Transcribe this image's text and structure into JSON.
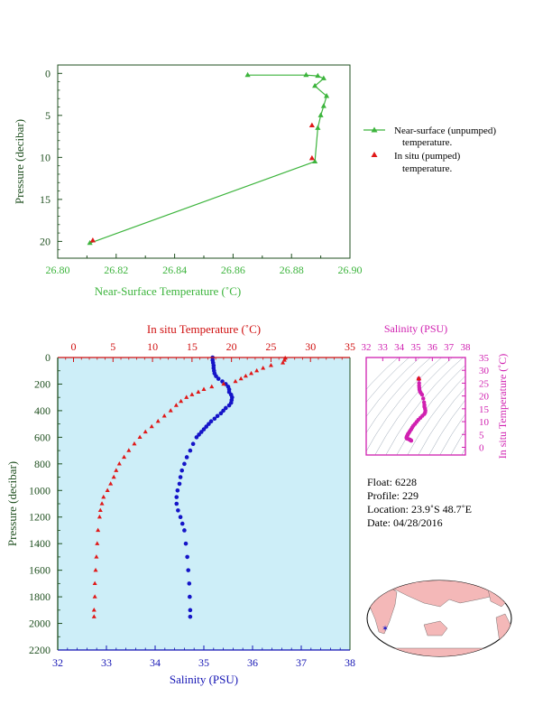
{
  "colors": {
    "green": "#3cb43c",
    "dark_green": "#1f4f1f",
    "red": "#e01818",
    "blue": "#1414c8",
    "magenta": "#d020b0",
    "panel_bg": "#cdeef8",
    "land": "#f4b8b8"
  },
  "chart_data": [
    {
      "type": "line",
      "id": "near_surface",
      "xlabel": "Near-Surface Temperature (˚C)",
      "ylabel": "Pressure (decibar)",
      "xlim": [
        26.8,
        26.9
      ],
      "ylim": [
        22,
        -1
      ],
      "xticks": [
        "26.80",
        "26.82",
        "26.84",
        "26.86",
        "26.88",
        "26.90"
      ],
      "yticks": [
        "0",
        "5",
        "10",
        "15",
        "20"
      ],
      "series": [
        {
          "name": "Near-surface (unpumped) temperature.",
          "marker": "triangle",
          "x": [
            26.865,
            26.885,
            26.889,
            26.891,
            26.888,
            26.892,
            26.891,
            26.89,
            26.889,
            26.888,
            26.811
          ],
          "y": [
            0.2,
            0.2,
            0.3,
            0.6,
            1.5,
            2.7,
            3.9,
            5.0,
            6.5,
            10.5,
            20.2
          ]
        },
        {
          "name": "In situ (pumped) temperature.",
          "marker": "triangle",
          "x": [
            26.887,
            26.887,
            26.812
          ],
          "y": [
            6.2,
            10.1,
            19.9
          ]
        }
      ],
      "legend": {
        "position": "right",
        "entries": [
          {
            "line1": "Near-surface (unpumped)",
            "line2": "temperature."
          },
          {
            "line1": "In situ (pumped)",
            "line2": "temperature."
          }
        ]
      }
    },
    {
      "type": "scatter",
      "id": "profile",
      "ylabel": "Pressure (decibar)",
      "top_xlabel": "In situ Temperature (˚C)",
      "bottom_xlabel": "Salinity (PSU)",
      "temp_lim": [
        -2,
        35
      ],
      "sal_lim": [
        32,
        38
      ],
      "ylim": [
        2200,
        0
      ],
      "temp_ticks": [
        "0",
        "5",
        "10",
        "15",
        "20",
        "25",
        "30",
        "35"
      ],
      "sal_ticks": [
        "32",
        "33",
        "34",
        "35",
        "36",
        "37",
        "38"
      ],
      "pressure_ticks": [
        "0",
        "200",
        "400",
        "600",
        "800",
        "1000",
        "1200",
        "1400",
        "1600",
        "1800",
        "2000",
        "2200"
      ],
      "temperature": {
        "p": [
          5,
          20,
          40,
          60,
          80,
          100,
          120,
          140,
          160,
          180,
          200,
          220,
          240,
          260,
          280,
          300,
          330,
          360,
          400,
          440,
          480,
          520,
          560,
          600,
          650,
          700,
          750,
          800,
          850,
          900,
          950,
          1000,
          1050,
          1100,
          1150,
          1200,
          1300,
          1400,
          1500,
          1600,
          1700,
          1800,
          1900,
          1950
        ],
        "t": [
          26.8,
          26.7,
          26.5,
          25.0,
          24.0,
          23.2,
          22.5,
          21.8,
          21.2,
          20.5,
          19.0,
          17.5,
          16.5,
          15.8,
          15.0,
          14.3,
          13.6,
          13.0,
          12.3,
          11.5,
          10.7,
          9.9,
          9.1,
          8.4,
          7.7,
          7.0,
          6.4,
          5.8,
          5.4,
          5.1,
          4.7,
          4.3,
          3.8,
          3.6,
          3.4,
          3.3,
          3.1,
          3.0,
          2.9,
          2.8,
          2.7,
          2.7,
          2.6,
          2.6
        ]
      },
      "salinity": {
        "p": [
          0,
          20,
          40,
          60,
          80,
          100,
          120,
          140,
          160,
          180,
          200,
          220,
          240,
          260,
          280,
          300,
          320,
          340,
          360,
          380,
          400,
          420,
          440,
          460,
          480,
          500,
          520,
          540,
          560,
          580,
          600,
          650,
          700,
          750,
          800,
          850,
          900,
          950,
          1000,
          1050,
          1100,
          1150,
          1200,
          1250,
          1300,
          1400,
          1500,
          1600,
          1700,
          1800,
          1900,
          1950
        ],
        "s": [
          35.18,
          35.18,
          35.19,
          35.2,
          35.2,
          35.21,
          35.22,
          35.25,
          35.3,
          35.38,
          35.45,
          35.5,
          35.52,
          35.52,
          35.56,
          35.58,
          35.57,
          35.56,
          35.52,
          35.45,
          35.4,
          35.35,
          35.28,
          35.22,
          35.15,
          35.1,
          35.05,
          35.0,
          34.95,
          34.9,
          34.85,
          34.78,
          34.72,
          34.65,
          34.6,
          34.55,
          34.52,
          34.5,
          34.46,
          34.44,
          34.44,
          34.47,
          34.52,
          34.56,
          34.6,
          34.63,
          34.66,
          34.68,
          34.7,
          34.71,
          34.72,
          34.72
        ]
      }
    },
    {
      "type": "scatter",
      "id": "ts_diagram",
      "top_xlabel": "Salinity (PSU)",
      "right_ylabel": "In situ Temperature (˚C)",
      "sal_lim": [
        32,
        38
      ],
      "temp_lim": [
        -3,
        35
      ],
      "sal_ticks": [
        "32",
        "33",
        "34",
        "35",
        "36",
        "37",
        "38"
      ],
      "temp_ticks": [
        "0",
        "5",
        "10",
        "15",
        "20",
        "25",
        "30",
        "35"
      ]
    }
  ],
  "info": {
    "float": "Float:  6228",
    "profile": "Profile:  229",
    "location": "Location:  23.9˚S  48.7˚E",
    "date": "Date:  04/28/2016"
  }
}
